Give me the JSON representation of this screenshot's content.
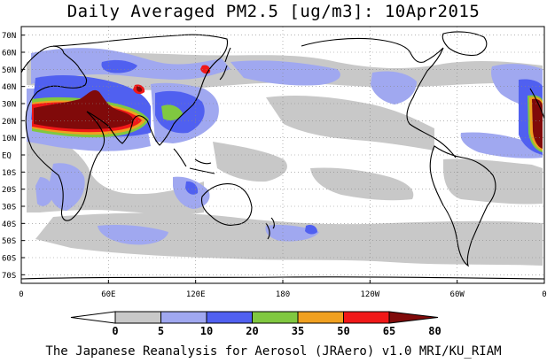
{
  "title": "Daily Averaged PM2.5 [ug/m3]: 10Apr2015",
  "credit": "The Japanese Reanalysis for Aerosol (JRAero) v1.0 MRI/KU_RIAM",
  "axes": {
    "lat_labels": [
      "70N",
      "60N",
      "50N",
      "40N",
      "30N",
      "20N",
      "10N",
      "EQ",
      "10S",
      "20S",
      "30S",
      "40S",
      "50S",
      "60S",
      "70S"
    ],
    "lon_labels": [
      "0",
      "60E",
      "120E",
      "180",
      "120W",
      "60W",
      "0"
    ]
  },
  "colorbar": {
    "tick_labels": [
      "0",
      "5",
      "10",
      "20",
      "35",
      "50",
      "65",
      "80"
    ],
    "colors": [
      "#ffffff",
      "#c8c8c8",
      "#a0a8f0",
      "#5060f0",
      "#80c840",
      "#f0a020",
      "#f01818",
      "#800a0a"
    ]
  },
  "map_style": {
    "ocean": "#ffffff",
    "land_outline": "#000000"
  }
}
